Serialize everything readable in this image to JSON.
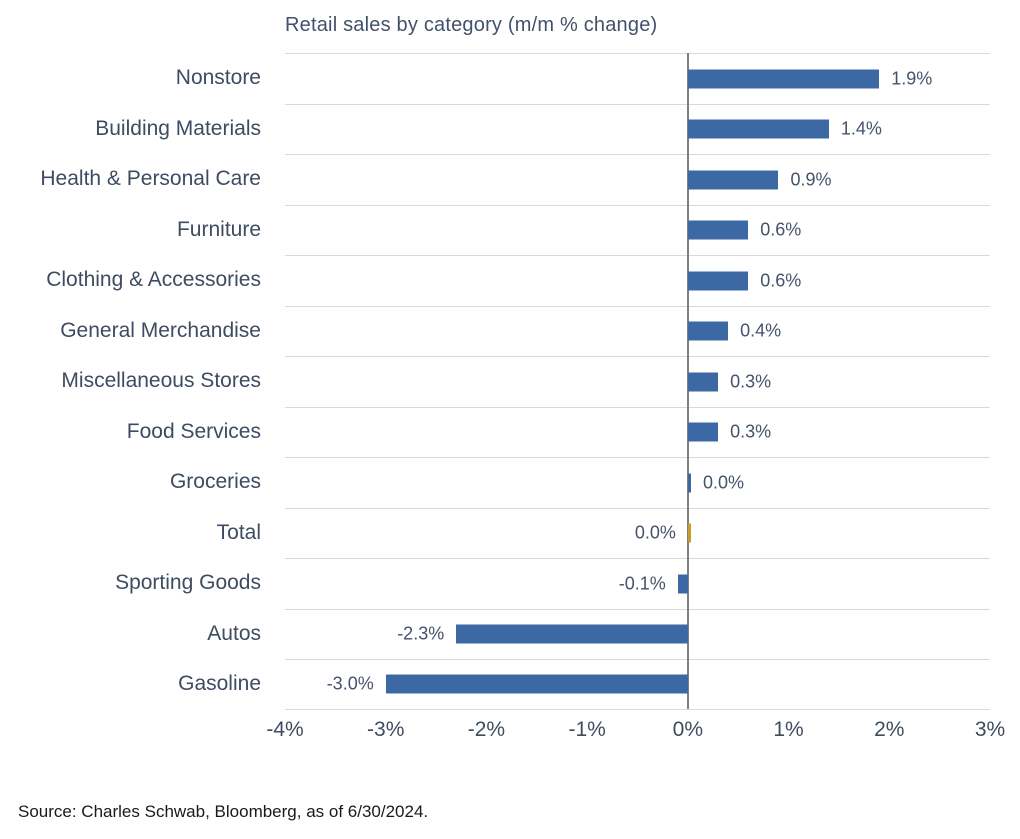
{
  "chart_data": {
    "type": "bar",
    "orientation": "horizontal",
    "title": "Retail sales by category (m/m % change)",
    "xlim": [
      -4,
      3
    ],
    "x_ticks": [
      "-4%",
      "-3%",
      "-2%",
      "-1%",
      "0%",
      "1%",
      "2%",
      "3%"
    ],
    "grid": "row-separators",
    "bar_color": "#3c69a4",
    "highlight_color": "#c99a2e",
    "bars": [
      {
        "category": "Nonstore",
        "value": 1.9,
        "label": "1.9%",
        "side": "right"
      },
      {
        "category": "Building Materials",
        "value": 1.4,
        "label": "1.4%",
        "side": "right"
      },
      {
        "category": "Health & Personal Care",
        "value": 0.9,
        "label": "0.9%",
        "side": "right"
      },
      {
        "category": "Furniture",
        "value": 0.6,
        "label": "0.6%",
        "side": "right"
      },
      {
        "category": "Clothing & Accessories",
        "value": 0.6,
        "label": "0.6%",
        "side": "right"
      },
      {
        "category": "General Merchandise",
        "value": 0.4,
        "label": "0.4%",
        "side": "right"
      },
      {
        "category": "Miscellaneous Stores",
        "value": 0.3,
        "label": "0.3%",
        "side": "right"
      },
      {
        "category": "Food Services",
        "value": 0.3,
        "label": "0.3%",
        "side": "right"
      },
      {
        "category": "Groceries",
        "value": 0.0,
        "label": "0.0%",
        "side": "right"
      },
      {
        "category": "Total",
        "value": 0.0,
        "label": "0.0%",
        "side": "left",
        "color": "#c99a2e"
      },
      {
        "category": "Sporting Goods",
        "value": -0.1,
        "label": "-0.1%",
        "side": "left"
      },
      {
        "category": "Autos",
        "value": -2.3,
        "label": "-2.3%",
        "side": "left"
      },
      {
        "category": "Gasoline",
        "value": -3.0,
        "label": "-3.0%",
        "side": "left"
      }
    ],
    "source": "Source: Charles Schwab, Bloomberg, as of 6/30/2024."
  }
}
